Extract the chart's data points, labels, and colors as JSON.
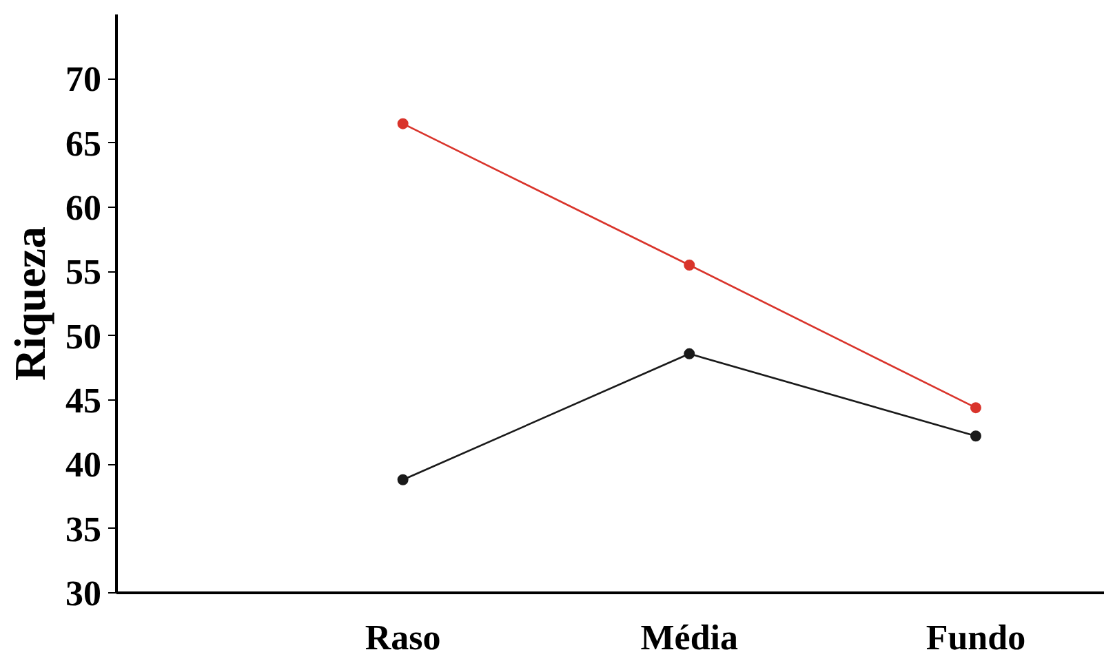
{
  "chart_data": {
    "type": "line",
    "ylabel": "Riqueza",
    "categories": [
      "Raso",
      "Média",
      "Fundo"
    ],
    "series": [
      {
        "color": "#d9342b",
        "values": [
          66.5,
          55.5,
          44.4
        ]
      },
      {
        "color": "#1a1a1a",
        "values": [
          38.8,
          48.6,
          42.2
        ]
      }
    ],
    "ylim": [
      30,
      75
    ],
    "yticks": [
      30,
      35,
      40,
      45,
      50,
      55,
      60,
      65,
      70
    ],
    "grid": false,
    "marker": "circle",
    "line_style": "solid"
  }
}
